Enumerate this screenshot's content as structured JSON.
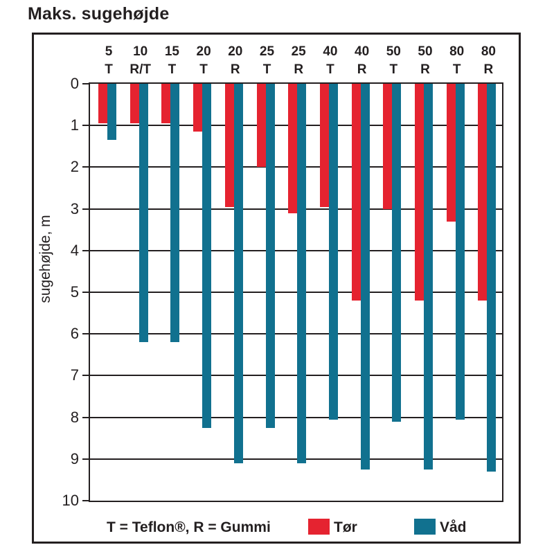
{
  "title": "Maks. sugehøjde",
  "chart_data": {
    "type": "bar",
    "orientation": "vertical-downward-from-zero",
    "title": "Maks. sugehøjde",
    "xlabel": "",
    "ylabel": "sugehøjde, m",
    "ylim": [
      0,
      10
    ],
    "yticks": [
      0,
      1,
      2,
      3,
      4,
      5,
      6,
      7,
      8,
      9,
      10
    ],
    "grid": true,
    "categories": [
      "5 T",
      "10 R/T",
      "15 T",
      "20 T",
      "20 R",
      "25 T",
      "25 R",
      "40 T",
      "40 R",
      "50 T",
      "50 R",
      "80 T",
      "80 R"
    ],
    "category_headers": [
      {
        "size": "5",
        "material": "T"
      },
      {
        "size": "10",
        "material": "R/T"
      },
      {
        "size": "15",
        "material": "T"
      },
      {
        "size": "20",
        "material": "T"
      },
      {
        "size": "20",
        "material": "R"
      },
      {
        "size": "25",
        "material": "T"
      },
      {
        "size": "25",
        "material": "R"
      },
      {
        "size": "40",
        "material": "T"
      },
      {
        "size": "40",
        "material": "R"
      },
      {
        "size": "50",
        "material": "T"
      },
      {
        "size": "50",
        "material": "R"
      },
      {
        "size": "80",
        "material": "T"
      },
      {
        "size": "80",
        "material": "R"
      }
    ],
    "series": [
      {
        "name": "Tør",
        "color": "#e52330",
        "values": [
          0.95,
          0.95,
          0.95,
          1.15,
          2.95,
          2.0,
          3.1,
          2.95,
          5.2,
          3.0,
          5.2,
          3.3,
          5.2
        ]
      },
      {
        "name": "Våd",
        "color": "#11718f",
        "values": [
          1.35,
          6.2,
          6.2,
          8.25,
          9.1,
          8.25,
          9.1,
          8.05,
          9.25,
          8.1,
          9.25,
          8.05,
          9.3
        ]
      }
    ],
    "legend_note": "T = Teflon®, R = Gummi",
    "legend_position": "bottom"
  },
  "legend": {
    "note": "T = Teflon®, R = Gummi",
    "tor_label": "Tør",
    "vad_label": "Våd"
  },
  "colors": {
    "tor": "#e52330",
    "vad": "#11718f",
    "text": "#231f20",
    "border": "#231f20",
    "background": "#ffffff"
  }
}
